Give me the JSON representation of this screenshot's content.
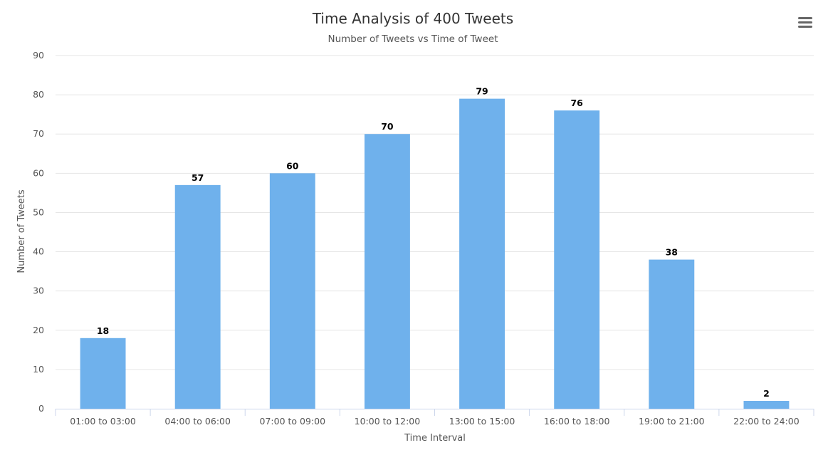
{
  "chart_data": {
    "type": "bar",
    "title": "Time Analysis of 400 Tweets",
    "subtitle": "Number of Tweets vs Time of Tweet",
    "xlabel": "Time Interval",
    "ylabel": "Number of Tweets",
    "categories": [
      "01:00 to 03:00",
      "04:00 to 06:00",
      "07:00 to 09:00",
      "10:00 to 12:00",
      "13:00 to 15:00",
      "16:00 to 18:00",
      "19:00 to 21:00",
      "22:00 to 24:00"
    ],
    "values": [
      18,
      57,
      60,
      70,
      79,
      76,
      38,
      2
    ],
    "ylim": [
      0,
      90
    ],
    "yticks": [
      0,
      10,
      20,
      30,
      40,
      50,
      60,
      70,
      80,
      90
    ],
    "grid": true,
    "legend": "none",
    "bar_color": "#6fb1ec",
    "gridline_color": "#e6e6e6",
    "axis_color": "#ccd6eb"
  },
  "menu": {
    "icon": "hamburger-menu-icon"
  }
}
